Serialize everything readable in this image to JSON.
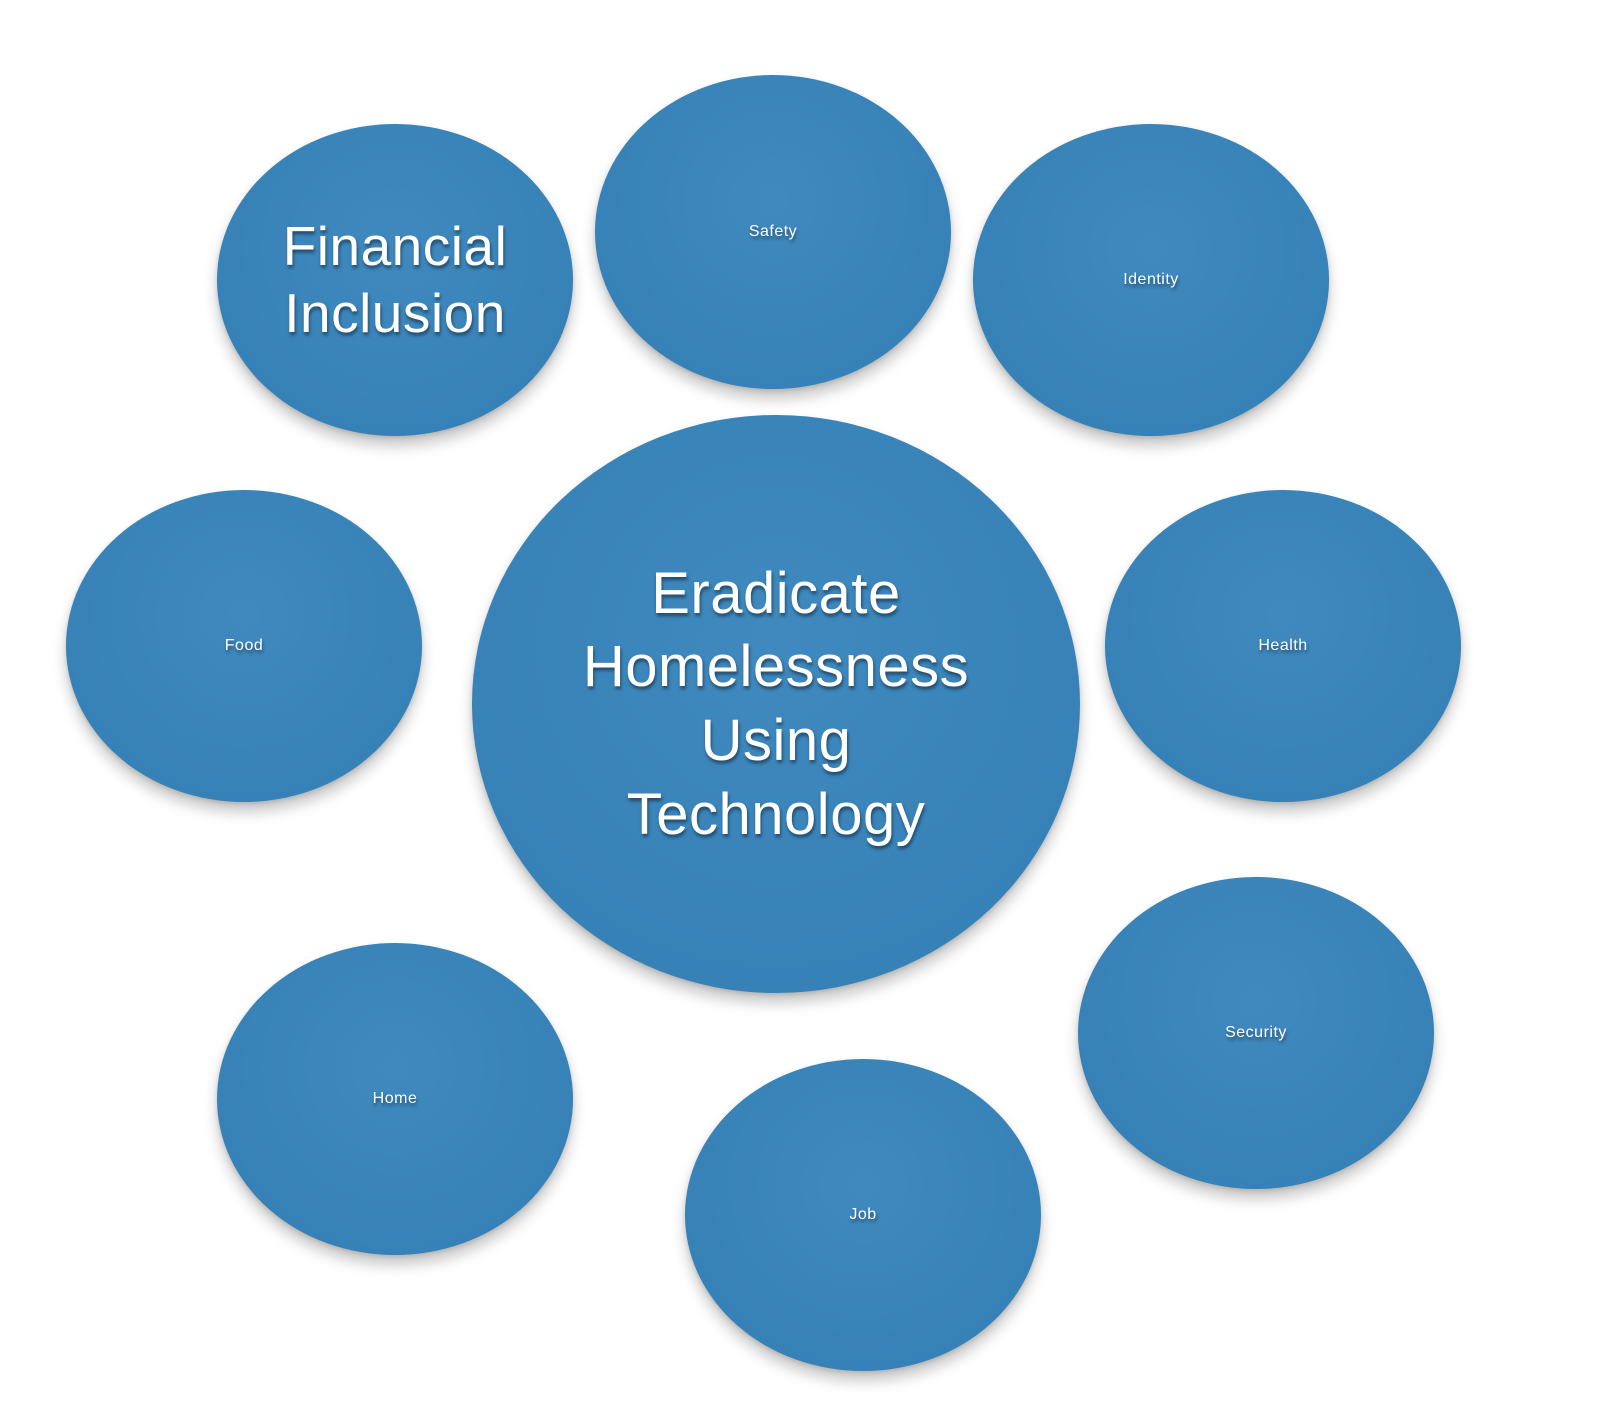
{
  "diagram": {
    "fill_color": "#3583BB",
    "text_color": "#FFFFFF",
    "center": {
      "label": "Eradicate\nHomelessness\nUsing\nTechnology"
    },
    "nodes": {
      "financial_inclusion": {
        "label": "Financial\nInclusion"
      },
      "safety": {
        "label": "Safety"
      },
      "identity": {
        "label": "Identity"
      },
      "food": {
        "label": "Food"
      },
      "health": {
        "label": "Health"
      },
      "home": {
        "label": "Home"
      },
      "security": {
        "label": "Security"
      },
      "job": {
        "label": "Job"
      }
    }
  }
}
